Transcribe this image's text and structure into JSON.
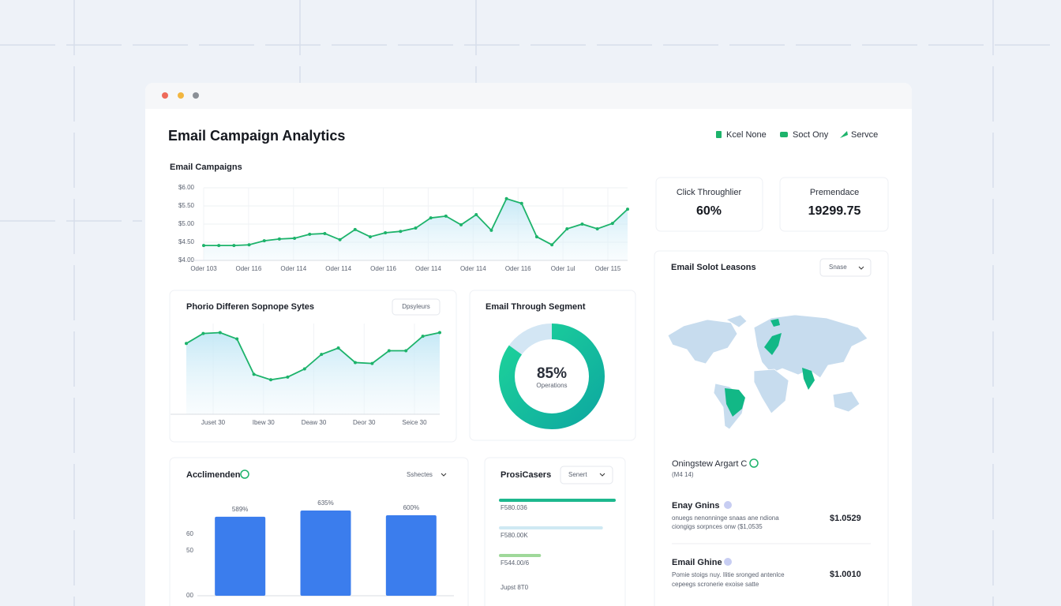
{
  "window": {
    "title": "Email Campaign Analytics",
    "nav": [
      "Kcel None",
      "Soct Ony",
      "Servce"
    ]
  },
  "campaigns": {
    "type": "line",
    "title": "Email Campaigns",
    "color": "#1db36b",
    "values": [
      4.41,
      4.41,
      4.41,
      4.43,
      4.54,
      4.59,
      4.61,
      4.72,
      4.74,
      4.57,
      4.85,
      4.65,
      4.76,
      4.8,
      4.89,
      5.17,
      5.22,
      4.98,
      5.26,
      4.83,
      5.7,
      5.57,
      4.65,
      4.43,
      4.87,
      5.0,
      4.87,
      5.02,
      5.41
    ],
    "ylim": [
      4,
      6
    ],
    "yticks": [
      {
        "value": 6,
        "label": "$6.00"
      },
      {
        "value": 5.5,
        "label": "$5.50"
      },
      {
        "value": 5,
        "label": "$5.00"
      },
      {
        "value": 4.5,
        "label": "$4.50"
      },
      {
        "value": 4,
        "label": "$4.00"
      }
    ],
    "x_labels": [
      "Oder 103",
      "Oder 116",
      "Oder 114",
      "Oder 114",
      "Oder 116",
      "Oder 114",
      "Oder 114",
      "Oder 116",
      "Oder 1ul",
      "Oder 115"
    ]
  },
  "engagement": {
    "type": "line",
    "title": "Phorio Differen Sopnope Sytes",
    "button": "Dpsyleurs",
    "color": "#1db36b",
    "values": [
      78,
      89,
      90,
      83,
      44,
      38,
      41,
      50,
      66,
      73,
      57,
      56,
      70,
      70,
      86,
      90
    ],
    "ylim": [
      0,
      100
    ],
    "x_labels": [
      "Juset 30",
      "Ibew 30",
      "Deaw 30",
      "Deor 30",
      "Seice 30"
    ]
  },
  "segment": {
    "type": "donut",
    "title": "Email Through Segment",
    "value": 85,
    "value_label": "85%",
    "caption": "Operations"
  },
  "stats": [
    {
      "label": "Click Throughlier",
      "value": "60%"
    },
    {
      "label": "Premendace",
      "value": "19299.75"
    }
  ],
  "map": {
    "title": "Email Solot Leasons",
    "dropdown": "Snase"
  },
  "bars": {
    "type": "bar",
    "title": "Acclimenden",
    "dropdown": "Sshectes",
    "color": "#3b7ded",
    "values": [
      589,
      635,
      600
    ],
    "value_labels": [
      "589%",
      "635%",
      "600%"
    ],
    "ylim": [
      0,
      700
    ],
    "ylabels": [
      "60",
      "50",
      "00"
    ]
  },
  "progress": {
    "title": "ProsiCasers",
    "dropdown": "Senert",
    "items": [
      {
        "label": "F580.036",
        "value": 100,
        "color": "#1db88e"
      },
      {
        "label": "F580.00K",
        "value": 89,
        "color": "#cfe9f3"
      },
      {
        "label": "F544.00/6",
        "value": 36,
        "color": "#9fd89a"
      }
    ],
    "footer": "Jupst 8T0"
  },
  "list": {
    "header": "Oningstew Argart C",
    "subheader": "(M4 14)",
    "items": [
      {
        "title": "Enay Gnins",
        "desc": [
          "onuegs nenonninge snaas ane ndiona",
          "ciongigs sorpnces onw ($1,0535"
        ],
        "amount": "$1.0529"
      },
      {
        "title": "Email Ghine",
        "desc": [
          "Pomie stoigs nuy. Ilitie sronged antenlce",
          "cepeegs scronerie exoise satte"
        ],
        "amount": "$1.0010"
      }
    ]
  }
}
